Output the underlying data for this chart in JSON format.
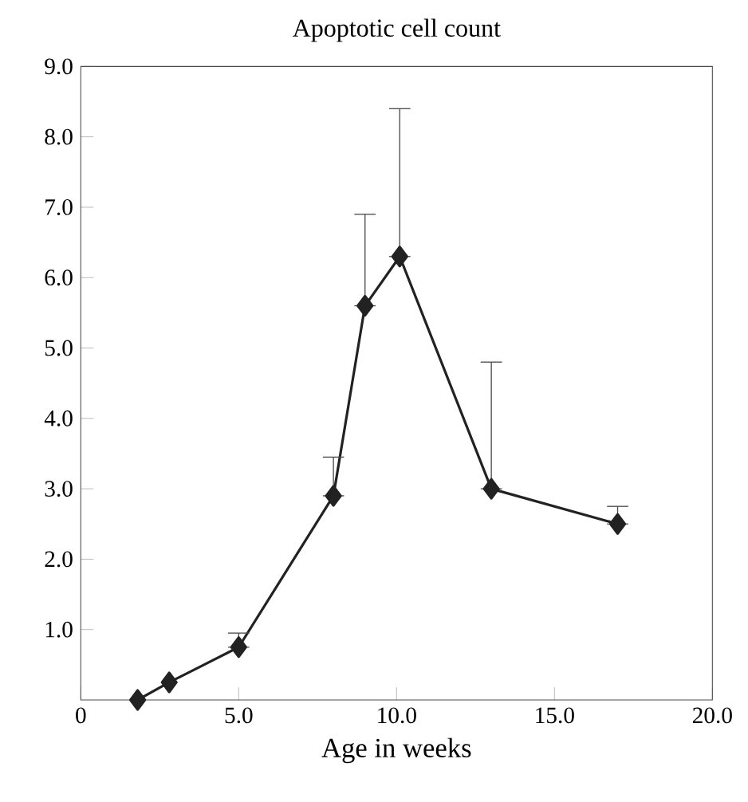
{
  "chart_data": {
    "type": "line",
    "title": "Apoptotic cell count",
    "xlabel": "Age in weeks",
    "x": [
      1.8,
      2.8,
      5.0,
      8.0,
      9.0,
      10.1,
      13.0,
      17.0
    ],
    "values": [
      0.0,
      0.25,
      0.75,
      2.9,
      5.6,
      6.3,
      3.0,
      2.5
    ],
    "errors": [
      null,
      null,
      [
        0.75,
        0.95
      ],
      [
        2.9,
        3.45
      ],
      [
        5.6,
        6.9
      ],
      [
        6.3,
        8.4
      ],
      [
        3.0,
        4.8
      ],
      [
        2.5,
        2.75
      ]
    ],
    "color": "#222222",
    "marker": "diamond",
    "line_style": "solid",
    "xlim": [
      0,
      20
    ],
    "xticks": [
      0,
      {
        "value": 5,
        "label": "5.0"
      },
      {
        "value": 10,
        "label": "10.0"
      },
      {
        "value": 15,
        "label": "15.0"
      },
      {
        "value": 20,
        "label": "20.0"
      }
    ],
    "ylim": [
      0,
      9
    ],
    "yticks": [
      {
        "value": 1,
        "label": "1.0"
      },
      {
        "value": 2,
        "label": "2.0"
      },
      {
        "value": 3,
        "label": "3.0"
      },
      {
        "value": 4,
        "label": "4.0"
      },
      {
        "value": 5,
        "label": "5.0"
      },
      {
        "value": 6,
        "label": "6.0"
      },
      {
        "value": 7,
        "label": "7.0"
      },
      {
        "value": 8,
        "label": "8.0"
      },
      {
        "value": 9,
        "label": "9.0"
      }
    ]
  }
}
